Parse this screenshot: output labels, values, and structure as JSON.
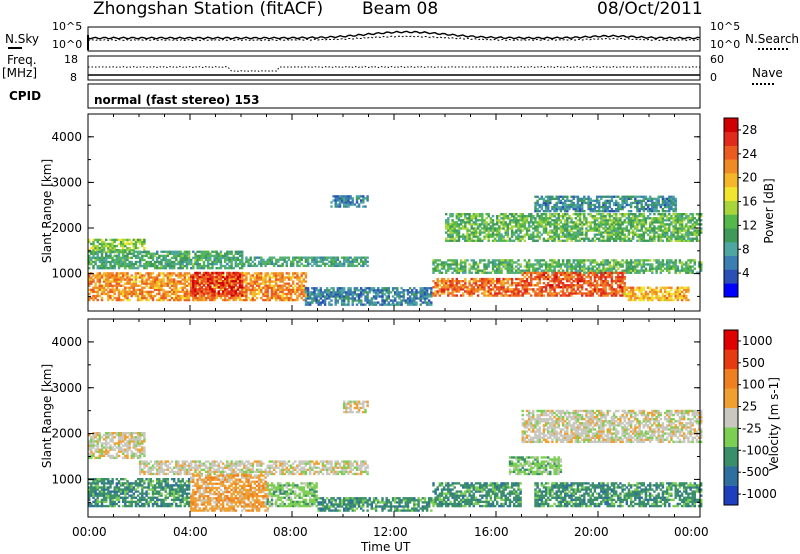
{
  "header": {
    "station": "Zhongshan Station (fitACF)",
    "beam": "Beam 08",
    "date": "08/Oct/2011"
  },
  "top_panels": {
    "nsky_label": "N.Sky",
    "nsearch_label": "N.Search",
    "nsky_ticks": [
      "10^5",
      "10^0"
    ],
    "nsearch_ticks": [
      "10^5",
      "10^0"
    ],
    "freq_label": "Freq.",
    "freq_unit": "[MHz]",
    "freq_ticks": [
      "18",
      "8"
    ],
    "nave_label": "Nave",
    "nave_ticks": [
      "60",
      "0"
    ],
    "cpid_label": "CPID",
    "cpid_text": "normal (fast stereo) 153"
  },
  "chart_data": [
    {
      "type": "heatmap",
      "name": "power",
      "ylabel": "Slant Range [km]",
      "xlabel": "Time UT",
      "x_ticks": [
        "00:00",
        "04:00",
        "08:00",
        "12:00",
        "16:00",
        "20:00",
        "00:00"
      ],
      "y_ticks": [
        "4000",
        "3000",
        "2000",
        "1000"
      ],
      "ylim": [
        180,
        4500
      ],
      "xlim_hours": [
        0,
        24
      ],
      "colorbar": {
        "label": "Power [dB]",
        "ticks": [
          "28",
          "24",
          "20",
          "16",
          "12",
          "8",
          "4"
        ],
        "range": [
          0,
          30
        ],
        "colors": [
          "#0000ff",
          "#2b4fb5",
          "#3a7fb0",
          "#4da6a0",
          "#3f9a5a",
          "#55b84b",
          "#a8d63a",
          "#f2e530",
          "#f5b72a",
          "#f08a25",
          "#eb5a20",
          "#e02a1b",
          "#d00000"
        ]
      },
      "regions": [
        {
          "t0": 0.0,
          "t1": 2.2,
          "r0": 1450,
          "r1": 1750,
          "level": 14
        },
        {
          "t0": 0.0,
          "t1": 6.0,
          "r0": 1100,
          "r1": 1500,
          "level": 10
        },
        {
          "t0": 0.0,
          "t1": 8.5,
          "r0": 400,
          "r1": 1000,
          "level": 22
        },
        {
          "t0": 4.0,
          "t1": 6.0,
          "r0": 500,
          "r1": 1000,
          "level": 27
        },
        {
          "t0": 6.0,
          "t1": 11.0,
          "r0": 1150,
          "r1": 1350,
          "level": 9
        },
        {
          "t0": 8.5,
          "t1": 13.5,
          "r0": 300,
          "r1": 700,
          "level": 6
        },
        {
          "t0": 9.5,
          "t1": 11.0,
          "r0": 2450,
          "r1": 2700,
          "level": 6
        },
        {
          "t0": 13.5,
          "t1": 17.0,
          "r0": 500,
          "r1": 900,
          "level": 24
        },
        {
          "t0": 13.5,
          "t1": 24.0,
          "r0": 1000,
          "r1": 1300,
          "level": 11
        },
        {
          "t0": 17.0,
          "t1": 21.0,
          "r0": 500,
          "r1": 1000,
          "level": 25
        },
        {
          "t0": 21.0,
          "t1": 23.5,
          "r0": 400,
          "r1": 700,
          "level": 20
        },
        {
          "t0": 14.0,
          "t1": 24.0,
          "r0": 1700,
          "r1": 2300,
          "level": 12
        },
        {
          "t0": 17.5,
          "t1": 23.0,
          "r0": 2350,
          "r1": 2700,
          "level": 7
        }
      ]
    },
    {
      "type": "heatmap",
      "name": "velocity",
      "ylabel": "Slant Range [km]",
      "xlabel": "Time UT",
      "x_ticks": [
        "00:00",
        "04:00",
        "08:00",
        "12:00",
        "16:00",
        "20:00",
        "00:00"
      ],
      "y_ticks": [
        "4000",
        "3000",
        "2000",
        "1000"
      ],
      "ylim": [
        180,
        4500
      ],
      "xlim_hours": [
        0,
        24
      ],
      "colorbar": {
        "label": "Velocity [m s-1]",
        "ticks": [
          "1000",
          "500",
          "100",
          "25",
          "-25",
          "-100",
          "-500",
          "-1000"
        ],
        "colors": [
          "#1f3fbf",
          "#2f6fa0",
          "#3a8f6a",
          "#7ccf52",
          "#c8c8c0",
          "#f0a030",
          "#f07f1f",
          "#e83a10",
          "#e00000"
        ]
      },
      "regions": [
        {
          "t0": 0.0,
          "t1": 2.2,
          "r0": 1450,
          "r1": 2000,
          "vclass": 4
        },
        {
          "t0": 2.0,
          "t1": 11.0,
          "r0": 1100,
          "r1": 1400,
          "vclass": 4
        },
        {
          "t0": 0.0,
          "t1": 4.0,
          "r0": 400,
          "r1": 1000,
          "vclass": 2
        },
        {
          "t0": 4.0,
          "t1": 7.0,
          "r0": 300,
          "r1": 1100,
          "vclass": 5
        },
        {
          "t0": 7.0,
          "t1": 9.0,
          "r0": 400,
          "r1": 900,
          "vclass": 3
        },
        {
          "t0": 9.0,
          "t1": 13.5,
          "r0": 300,
          "r1": 600,
          "vclass": 2
        },
        {
          "t0": 10.0,
          "t1": 11.0,
          "r0": 2450,
          "r1": 2700,
          "vclass": 4
        },
        {
          "t0": 13.5,
          "t1": 17.0,
          "r0": 400,
          "r1": 900,
          "vclass": 2
        },
        {
          "t0": 16.5,
          "t1": 18.5,
          "r0": 1100,
          "r1": 1500,
          "vclass": 3
        },
        {
          "t0": 17.5,
          "t1": 24.0,
          "r0": 400,
          "r1": 900,
          "vclass": 2
        },
        {
          "t0": 17.0,
          "t1": 24.0,
          "r0": 1800,
          "r1": 2500,
          "vclass": 4
        }
      ]
    }
  ]
}
